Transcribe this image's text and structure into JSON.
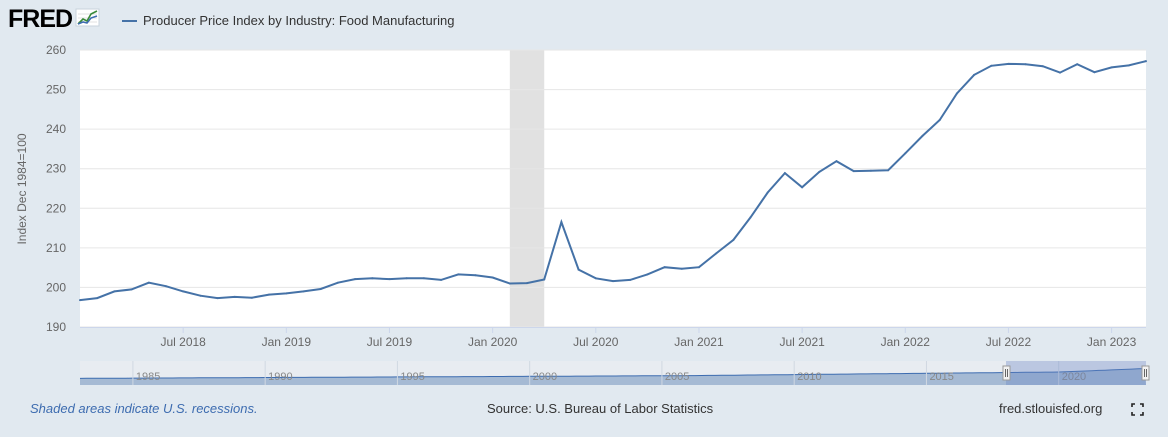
{
  "header": {
    "logo_text": "FRED",
    "logo_icon": "line-graph-icon",
    "legend_label": "Producer Price Index by Industry: Food Manufacturing",
    "series_color": "#4572a7"
  },
  "footer": {
    "note": "Shaded areas indicate U.S. recessions.",
    "source": "Source: U.S. Bureau of Labor Statistics",
    "link": "fred.stlouisfed.org",
    "fullscreen_icon": "fullscreen-icon"
  },
  "chart_data": {
    "type": "line",
    "ylabel": "Index Dec 1984=100",
    "ylim": [
      190,
      260
    ],
    "yticks": [
      190,
      200,
      210,
      220,
      230,
      240,
      250,
      260
    ],
    "xlim": [
      "2018-01",
      "2023-03"
    ],
    "xticks": [
      {
        "date": "2018-07",
        "label": "Jul 2018"
      },
      {
        "date": "2019-01",
        "label": "Jan 2019"
      },
      {
        "date": "2019-07",
        "label": "Jul 2019"
      },
      {
        "date": "2020-01",
        "label": "Jan 2020"
      },
      {
        "date": "2020-07",
        "label": "Jul 2020"
      },
      {
        "date": "2021-01",
        "label": "Jan 2021"
      },
      {
        "date": "2021-07",
        "label": "Jul 2021"
      },
      {
        "date": "2022-01",
        "label": "Jan 2022"
      },
      {
        "date": "2022-07",
        "label": "Jul 2022"
      },
      {
        "date": "2023-01",
        "label": "Jan 2023"
      }
    ],
    "recession": {
      "start": "2020-02",
      "end": "2020-04"
    },
    "grid": true,
    "legend": "top-left",
    "series": [
      {
        "name": "Producer Price Index by Industry: Food Manufacturing",
        "color": "#4572a7",
        "x": [
          "2018-01",
          "2018-02",
          "2018-03",
          "2018-04",
          "2018-05",
          "2018-06",
          "2018-07",
          "2018-08",
          "2018-09",
          "2018-10",
          "2018-11",
          "2018-12",
          "2019-01",
          "2019-02",
          "2019-03",
          "2019-04",
          "2019-05",
          "2019-06",
          "2019-07",
          "2019-08",
          "2019-09",
          "2019-10",
          "2019-11",
          "2019-12",
          "2020-01",
          "2020-02",
          "2020-03",
          "2020-04",
          "2020-05",
          "2020-06",
          "2020-07",
          "2020-08",
          "2020-09",
          "2020-10",
          "2020-11",
          "2020-12",
          "2021-01",
          "2021-02",
          "2021-03",
          "2021-04",
          "2021-05",
          "2021-06",
          "2021-07",
          "2021-08",
          "2021-09",
          "2021-10",
          "2021-11",
          "2021-12",
          "2022-01",
          "2022-02",
          "2022-03",
          "2022-04",
          "2022-05",
          "2022-06",
          "2022-07",
          "2022-08",
          "2022-09",
          "2022-10",
          "2022-11",
          "2022-12",
          "2023-01",
          "2023-02",
          "2023-03"
        ],
        "values": [
          196.8,
          197.3,
          199.0,
          199.5,
          201.2,
          200.3,
          199.0,
          197.9,
          197.3,
          197.6,
          197.4,
          198.2,
          198.5,
          199.0,
          199.6,
          201.2,
          202.1,
          202.3,
          202.1,
          202.3,
          202.3,
          201.9,
          203.3,
          203.1,
          202.5,
          201.0,
          201.1,
          202.0,
          216.5,
          204.5,
          202.3,
          201.6,
          201.9,
          203.3,
          205.1,
          204.7,
          205.1,
          208.6,
          212.0,
          217.7,
          224.0,
          228.9,
          225.3,
          229.2,
          231.9,
          229.4,
          229.5,
          229.6,
          233.9,
          238.3,
          242.3,
          249.0,
          253.7,
          256.0,
          256.5,
          256.4,
          255.9,
          254.3,
          256.4,
          254.4,
          255.6,
          256.1,
          257.2
        ]
      }
    ],
    "navigator": {
      "xticks": [
        "1985",
        "1990",
        "1995",
        "2000",
        "2005",
        "2010",
        "2015",
        "2020"
      ]
    }
  }
}
